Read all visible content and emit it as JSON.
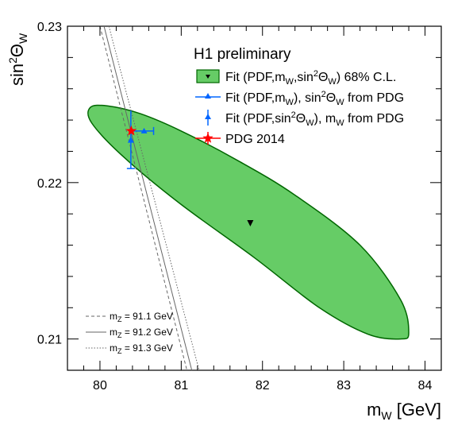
{
  "chart_data": {
    "type": "scatter",
    "header": "H1 preliminary",
    "xlabel_main": "m",
    "xlabel_sub": "W",
    "xlabel_unit": " [GeV]",
    "ylabel_main": "sin",
    "ylabel_sup": "2",
    "ylabel_theta": "Θ",
    "ylabel_sub": "W",
    "xlim": [
      79.6,
      84.2
    ],
    "ylim": [
      0.208,
      0.23
    ],
    "xticks": [
      {
        "value": 80,
        "label": "80"
      },
      {
        "value": 81,
        "label": "81"
      },
      {
        "value": 82,
        "label": "82"
      },
      {
        "value": 83,
        "label": "83"
      },
      {
        "value": 84,
        "label": "84"
      }
    ],
    "yticks": [
      {
        "value": 0.21,
        "label": "0.21"
      },
      {
        "value": 0.22,
        "label": "0.22"
      },
      {
        "value": 0.23,
        "label": "0.23"
      }
    ],
    "ellipse": {
      "name": "Fit (PDF,m_W,sin²Θ_W) 68% C.L.",
      "center": [
        81.85,
        0.2174
      ],
      "points": [
        [
          79.88,
          0.2248
        ],
        [
          80.1,
          0.2249
        ],
        [
          80.5,
          0.2244
        ],
        [
          81.0,
          0.2233
        ],
        [
          81.7,
          0.2214
        ],
        [
          82.4,
          0.2192
        ],
        [
          83.2,
          0.216
        ],
        [
          83.7,
          0.2125
        ],
        [
          83.8,
          0.2104
        ],
        [
          83.7,
          0.21
        ],
        [
          83.3,
          0.2103
        ],
        [
          82.7,
          0.212
        ],
        [
          81.9,
          0.2152
        ],
        [
          81.0,
          0.2186
        ],
        [
          80.3,
          0.2216
        ],
        [
          79.9,
          0.2238
        ]
      ],
      "fill": "#66cc66",
      "stroke": "#006600"
    },
    "best_fit": {
      "x": 81.85,
      "y": 0.2174,
      "color": "#000000"
    },
    "mw_fit": {
      "x": 80.38,
      "y": 0.2233,
      "x_err": [
        80.38,
        80.66
      ],
      "color": "#0066ff"
    },
    "sw_fit": {
      "x": 80.38,
      "y": 0.2227,
      "y_err": [
        0.2209,
        0.2246
      ],
      "color": "#0066ff"
    },
    "pdg": {
      "x": 80.385,
      "y": 0.2233,
      "color": "#ff0000"
    },
    "mz_lines": [
      {
        "label_main": "m",
        "label_sub": "Z",
        "label_value": " = 91.1 GeV",
        "x1": 80.0,
        "y1": 0.23,
        "x2": 81.07,
        "y2": 0.208,
        "style": "dashed",
        "color": "#666666"
      },
      {
        "label_main": "m",
        "label_sub": "Z",
        "label_value": " = 91.2 GeV",
        "x1": 80.05,
        "y1": 0.23,
        "x2": 81.13,
        "y2": 0.208,
        "style": "solid",
        "color": "#666666"
      },
      {
        "label_main": "m",
        "label_sub": "Z",
        "label_value": " = 91.3 GeV",
        "x1": 80.11,
        "y1": 0.23,
        "x2": 81.22,
        "y2": 0.208,
        "style": "dotted",
        "color": "#666666"
      }
    ],
    "legend": {
      "placement": "top-right",
      "entries": [
        {
          "type": "ellipse",
          "pre": "Fit (PDF,m",
          "sub1": "W",
          "mid": ",sin",
          "sup": "2",
          "theta": "Θ",
          "sub2": "W",
          "post": ") 68% C.L."
        },
        {
          "type": "hline",
          "pre": "Fit (PDF,m",
          "sub1": "W",
          "mid": "), sin",
          "sup": "2",
          "theta": "Θ",
          "sub2": "W",
          "post": " from PDG"
        },
        {
          "type": "vline",
          "pre": "Fit (PDF,sin",
          "sup": "2",
          "theta": "Θ",
          "sub1": "W",
          "mid": "), m",
          "sub2": "W",
          "post": " from PDG"
        },
        {
          "type": "star",
          "text": "PDG 2014"
        }
      ]
    }
  }
}
